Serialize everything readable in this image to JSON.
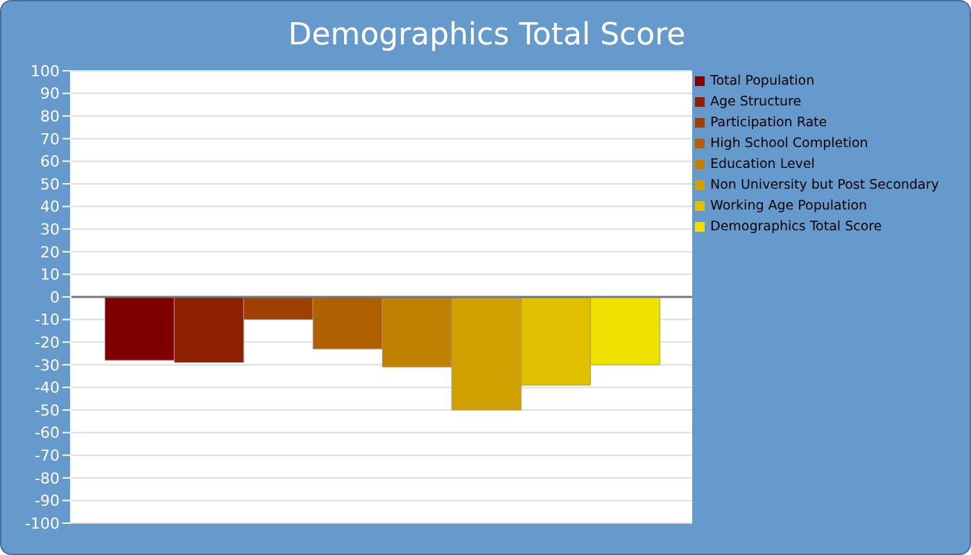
{
  "chart_data": {
    "type": "bar",
    "title": "Demographics Total Score",
    "categories": [
      null
    ],
    "series": [
      {
        "name": "Total Population",
        "color": "#800000",
        "values": [
          -28
        ]
      },
      {
        "name": "Age Structure",
        "color": "#8e1f00",
        "values": [
          -29
        ]
      },
      {
        "name": "Participation Rate",
        "color": "#a04000",
        "values": [
          -10
        ]
      },
      {
        "name": "High School Completion",
        "color": "#b06000",
        "values": [
          -23
        ]
      },
      {
        "name": "Education Level",
        "color": "#c08000",
        "values": [
          -31
        ]
      },
      {
        "name": "Non University but Post Secondary",
        "color": "#d0a000",
        "values": [
          -50
        ]
      },
      {
        "name": "Working Age Population",
        "color": "#e0c000",
        "values": [
          -39
        ]
      },
      {
        "name": "Demographics Total Score",
        "color": "#f0e000",
        "values": [
          -30
        ]
      }
    ],
    "ylim": [
      -100,
      100
    ],
    "yticks": [
      -100,
      -90,
      -80,
      -70,
      -60,
      -50,
      -40,
      -30,
      -20,
      -10,
      0,
      10,
      20,
      30,
      40,
      50,
      60,
      70,
      80,
      90,
      100
    ],
    "grid": "y",
    "legend": "top right"
  }
}
